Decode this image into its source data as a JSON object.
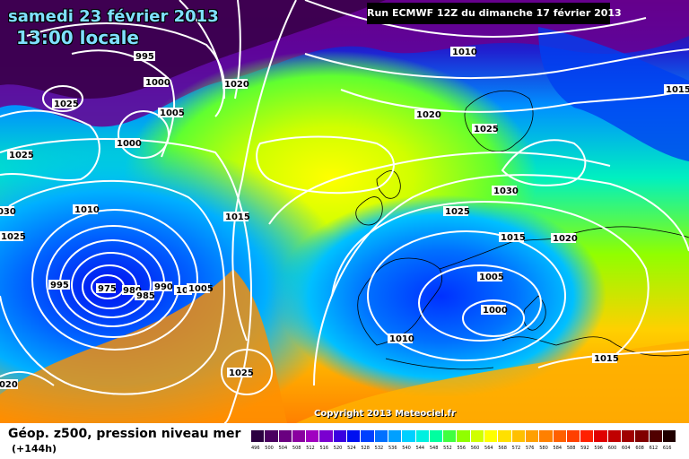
{
  "title": {
    "date": "samedi 23 février 2013",
    "time": "13:00 locale",
    "run": "Run ECMWF 12Z du dimanche 17 février 2013",
    "copyright": "Copyright 2013 Meteociel.fr"
  },
  "footer": {
    "title": "Géop. z500, pression niveau mer",
    "subtitle": "(+144h)"
  },
  "scale": {
    "labels": [
      "496",
      "500",
      "504",
      "508",
      "512",
      "516",
      "520",
      "524",
      "528",
      "532",
      "536",
      "540",
      "544",
      "548",
      "552",
      "556",
      "560",
      "564",
      "568",
      "572",
      "576",
      "580",
      "584",
      "588",
      "592",
      "596",
      "600",
      "604",
      "608",
      "612",
      "616"
    ],
    "colors": [
      "#2b0040",
      "#4a0060",
      "#6a0080",
      "#8a00a0",
      "#a000c0",
      "#7a00d0",
      "#3a00e0",
      "#0010f0",
      "#0040ff",
      "#0070ff",
      "#00a0ff",
      "#00d0ff",
      "#00f0e0",
      "#00ffa0",
      "#40ff40",
      "#90ff00",
      "#d0ff00",
      "#ffff00",
      "#ffe000",
      "#ffc000",
      "#ffa000",
      "#ff8000",
      "#ff6000",
      "#ff4000",
      "#ff2000",
      "#e00000",
      "#c00000",
      "#a00000",
      "#800000",
      "#500000",
      "#200000"
    ]
  },
  "isobars": [
    "995",
    "1000",
    "1025",
    "1005",
    "1000",
    "1025",
    "1010",
    "1020",
    "1015",
    "1025",
    "1030",
    "1030",
    "1010",
    "1025",
    "1015",
    "995",
    "975",
    "980",
    "985",
    "990",
    "1010",
    "1005",
    "1025",
    "1020",
    "1025",
    "1015",
    "1020",
    "1005",
    "1000",
    "1010",
    "1015",
    "1020"
  ]
}
